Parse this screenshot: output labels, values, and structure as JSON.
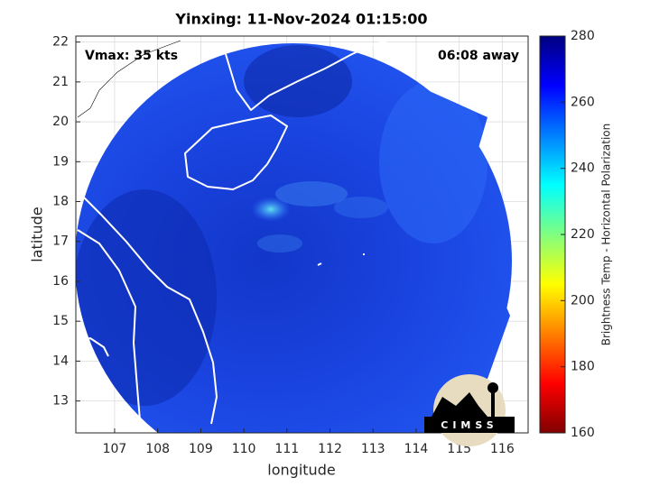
{
  "chart_data": {
    "type": "map",
    "title": "Yinxing: 11-Nov-2024 01:15:00",
    "annotations": [
      "Vmax: 35 kts",
      "06:08 away"
    ],
    "xlabel": "longitude",
    "ylabel": "latitude",
    "xlim": [
      106.1,
      116.6
    ],
    "ylim": [
      12.2,
      22.15
    ],
    "xticks": [
      107,
      108,
      109,
      110,
      111,
      112,
      113,
      114,
      115,
      116
    ],
    "yticks": [
      13,
      14,
      15,
      16,
      17,
      18,
      19,
      20,
      21,
      22
    ],
    "grid": true,
    "colorbar": {
      "label": "Brightness Temp - Horizontal Polarization",
      "lim": [
        160,
        280
      ],
      "ticks": [
        160,
        180,
        200,
        220,
        240,
        260,
        280
      ]
    }
  },
  "logo": "CIMSS"
}
